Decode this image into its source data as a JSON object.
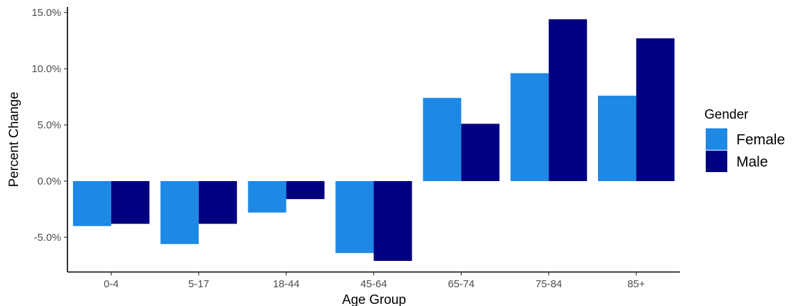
{
  "chart_data": {
    "type": "bar",
    "title": "",
    "xlabel": "Age Group",
    "ylabel": "Percent Change",
    "categories": [
      "0-4",
      "5-17",
      "18-44",
      "45-64",
      "65-74",
      "75-84",
      "85+"
    ],
    "series": [
      {
        "name": "Female",
        "color": "#1E88E5",
        "values": [
          -4.0,
          -5.6,
          -2.8,
          -6.4,
          7.4,
          9.6,
          7.6
        ]
      },
      {
        "name": "Male",
        "color": "#000080",
        "values": [
          -3.8,
          -3.8,
          -1.6,
          -7.1,
          5.1,
          14.4,
          12.7
        ]
      }
    ],
    "ylim": [
      -8.0,
      15.5
    ],
    "yticks": [
      -5.0,
      0.0,
      5.0,
      10.0,
      15.0
    ],
    "ytick_labels": [
      "-5.0%",
      "0.0%",
      "5.0%",
      "10.0%",
      "15.0%"
    ],
    "grid": false,
    "legend": {
      "title": "Gender",
      "placement": "right"
    }
  }
}
